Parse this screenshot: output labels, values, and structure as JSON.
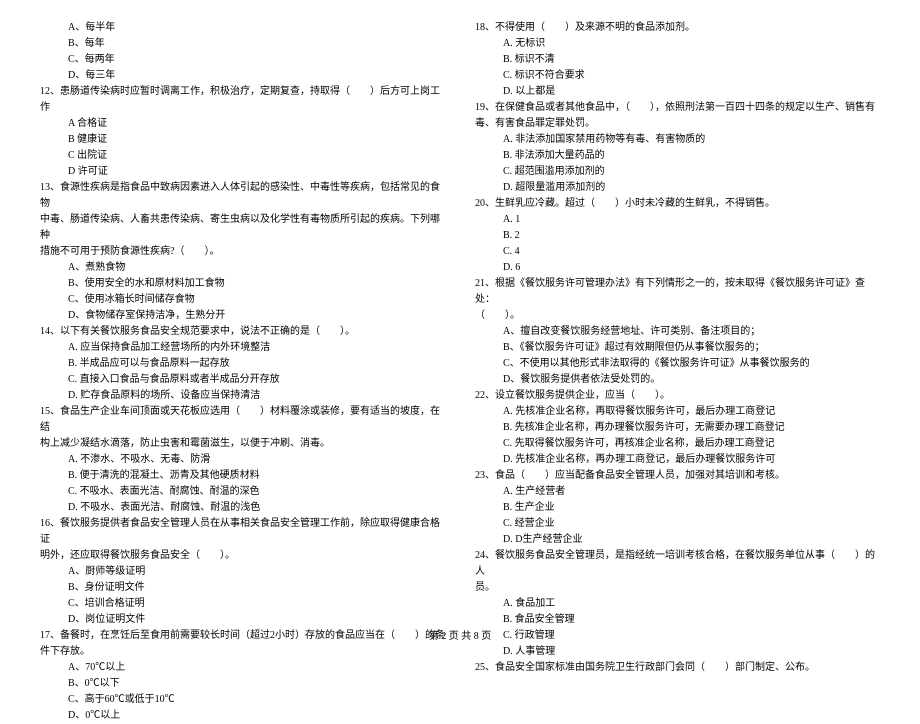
{
  "left": {
    "opts11": [
      "A、每半年",
      "B、每年",
      "C、每两年",
      "D、每三年"
    ],
    "q12": "12、患肠道传染病时应暂时调离工作，积极治疗，定期复查，持取得（　　）后方可上岗工作",
    "opts12": [
      "A 合格证",
      "B 健康证",
      "C 出院证",
      "D 许可证"
    ],
    "q13a": "13、食源性疾病是指食品中致病因素进入人体引起的感染性、中毒性等疾病，包括常见的食物",
    "q13b": "中毒、肠道传染病、人畜共患传染病、寄生虫病以及化学性有毒物质所引起的疾病。下列哪种",
    "q13c": "措施不可用于预防食源性疾病?（　　）。",
    "opts13": [
      "A、煮熟食物",
      "B、使用安全的水和原材料加工食物",
      "C、使用冰箱长时间储存食物",
      "D、食物储存室保持洁净，生熟分开"
    ],
    "q14": "14、以下有关餐饮服务食品安全规范要求中，说法不正确的是（　　）。",
    "opts14": [
      "A. 应当保持食品加工经营场所的内外环境整洁",
      "B. 半成品应可以与食品原料一起存放",
      "C. 直接入口食品与食品原料或者半成品分开存放",
      "D. 贮存食品原料的场所、设备应当保持清洁"
    ],
    "q15a": "15、食品生产企业车间顶面或天花板应选用（　　）材料覆涂或装修，要有适当的坡度，在结",
    "q15b": "构上减少凝结水滴落，防止虫害和霉菌滋生，以便于冲刷、消毒。",
    "opts15": [
      "A. 不渗水、不吸水、无毒、防滑",
      "B. 便于清洗的混凝土、沥青及其他硬质材料",
      "C. 不吸水、表面光洁、耐腐蚀、耐温的深色",
      "D. 不吸水、表面光洁、耐腐蚀、耐温的浅色"
    ],
    "q16a": "16、餐饮服务提供者食品安全管理人员在从事相关食品安全管理工作前，除应取得健康合格证",
    "q16b": "明外，还应取得餐饮服务食品安全（　　）。",
    "opts16": [
      "A、厨师等级证明",
      "B、身份证明文件",
      "C、培训合格证明",
      "D、岗位证明文件"
    ],
    "q17a": "17、备餐时，在烹饪后至食用前需要较长时间（超过2小时）存放的食品应当在（　　）的条",
    "q17b": "件下存放。",
    "opts17": [
      "A、70℃以上",
      "B、0℃以下",
      "C、高于60℃或低于10℃",
      "D、0℃以上"
    ]
  },
  "right": {
    "q18": "18、不得使用（　　）及来源不明的食品添加剂。",
    "opts18": [
      "A. 无标识",
      "B. 标识不清",
      "C. 标识不符合要求",
      "D. 以上都是"
    ],
    "q19a": "19、在保健食品或者其他食品中，（　　），依照刑法第一百四十四条的规定以生产、销售有",
    "q19b": "毒、有害食品罪定罪处罚。",
    "opts19": [
      "A. 非法添加国家禁用药物等有毒、有害物质的",
      "B. 非法添加大量药品的",
      "C. 超范围滥用添加剂的",
      "D. 超限量滥用添加剂的"
    ],
    "q20": "20、生鲜乳应冷藏。超过（　　）小时未冷藏的生鲜乳，不得销售。",
    "opts20": [
      "A. 1",
      "B. 2",
      "C. 4",
      "D. 6"
    ],
    "q21a": "21、根据《餐饮服务许可管理办法》有下列情形之一的，按未取得《餐饮服务许可证》查处：",
    "q21b": "（　　）。",
    "opts21": [
      "A、擅自改变餐饮服务经营地址、许可类别、备注项目的；",
      "B、《餐饮服务许可证》超过有效期限但仍从事餐饮服务的；",
      "C、不使用以其他形式非法取得的《餐饮服务许可证》从事餐饮服务的",
      "D、餐饮服务提供者依法受处罚的。"
    ],
    "q22": "22、设立餐饮服务提供企业，应当（　　）。",
    "opts22": [
      "A. 先核准企业名称，再取得餐饮服务许可，最后办理工商登记",
      "B. 先核准企业名称，再办理餐饮服务许可，无需要办理工商登记",
      "C. 先取得餐饮服务许可，再核准企业名称，最后办理工商登记",
      "D. 先核准企业名称，再办理工商登记，最后办理餐饮服务许可"
    ],
    "q23": "23、食品（　　）应当配备食品安全管理人员，加强对其培训和考核。",
    "opts23": [
      "A. 生产经营者",
      "B. 生产企业",
      "C. 经营企业",
      "D. D生产经营企业"
    ],
    "q24a": "24、餐饮服务食品安全管理员，是指经统一培训考核合格，在餐饮服务单位从事（　　）的人",
    "q24b": "员。",
    "opts24": [
      "A. 食品加工",
      "B. 食品安全管理",
      "C. 行政管理",
      "D. 人事管理"
    ],
    "q25": "25、食品安全国家标准由国务院卫生行政部门会同（　　）部门制定、公布。"
  },
  "footer": "第 2 页 共 8 页"
}
